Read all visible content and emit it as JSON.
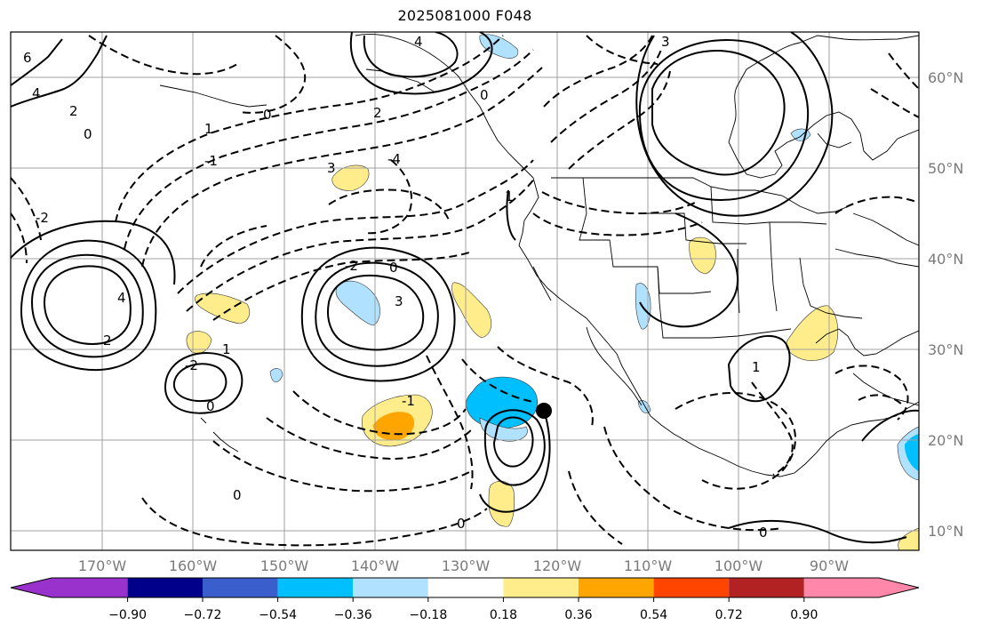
{
  "title": "2025081000 F048",
  "map": {
    "lat_ticks": [
      "60°N",
      "50°N",
      "40°N",
      "30°N",
      "20°N",
      "10°N"
    ],
    "lon_ticks": [
      "170°W",
      "160°W",
      "150°W",
      "140°W",
      "130°W",
      "120°W",
      "110°W",
      "100°W",
      "90°W"
    ],
    "contour_labels": [
      "6",
      "4",
      "2",
      "0",
      "1",
      "4",
      "3",
      "0",
      "2",
      "0",
      "-1",
      "-2",
      "3",
      "-4",
      "0",
      "-2",
      "4",
      "3",
      "1",
      "2",
      "1",
      "0",
      "0",
      "-2",
      "-1",
      "0",
      "1",
      "0"
    ],
    "colors": {
      "grid": "#a0a0a0",
      "coast": "#000000",
      "contour": "#000000",
      "marker": "#000000"
    }
  },
  "colorbar": {
    "ticks": [
      "−0.90",
      "−0.72",
      "−0.54",
      "−0.36",
      "−0.18",
      "0.18",
      "0.36",
      "0.54",
      "0.72",
      "0.90"
    ],
    "colors": [
      "#9932cc",
      "#00008b",
      "#3a5fcd",
      "#00bfff",
      "#b0e2ff",
      "#ffffff",
      "#ffec8b",
      "#ffa500",
      "#ff4500",
      "#b22222",
      "#ff88aa"
    ]
  }
}
